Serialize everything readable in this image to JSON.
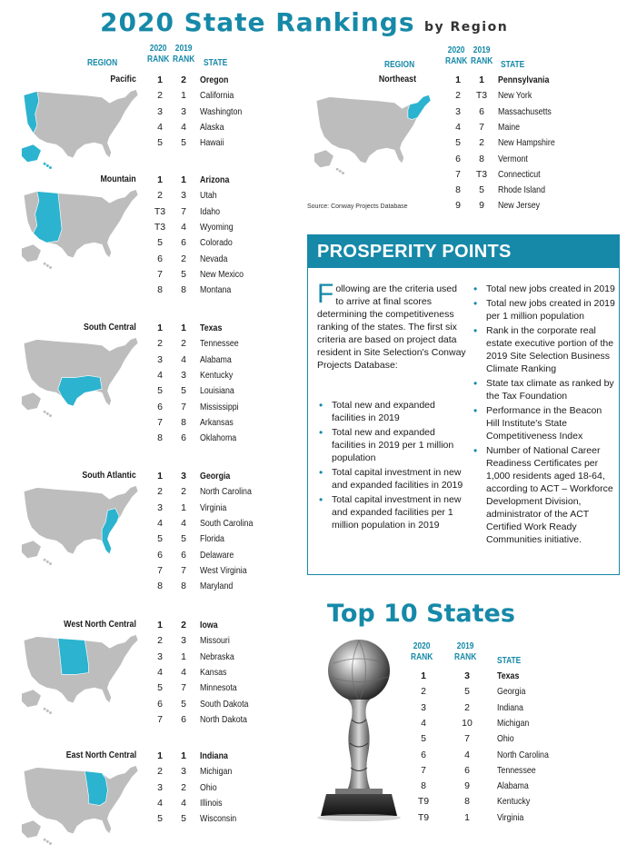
{
  "header": {
    "title": "2020 State Rankings",
    "subtitle": "by Region"
  },
  "columns": {
    "region": "REGION",
    "rank2020": "2020\nRANK",
    "rank2019": "2019\nRANK",
    "state": "STATE"
  },
  "columns_top10": {
    "rank2020": "2020\nRANK",
    "rank2019": "2019\nRANK",
    "state": "STATE"
  },
  "regions": [
    {
      "name": "Pacific",
      "rows": [
        {
          "r20": "1",
          "r19": "2",
          "state": "Oregon"
        },
        {
          "r20": "2",
          "r19": "1",
          "state": "California"
        },
        {
          "r20": "3",
          "r19": "3",
          "state": "Washington"
        },
        {
          "r20": "4",
          "r19": "4",
          "state": "Alaska"
        },
        {
          "r20": "5",
          "r19": "5",
          "state": "Hawaii"
        }
      ]
    },
    {
      "name": "Mountain",
      "rows": [
        {
          "r20": "1",
          "r19": "1",
          "state": "Arizona"
        },
        {
          "r20": "2",
          "r19": "3",
          "state": "Utah"
        },
        {
          "r20": "T3",
          "r19": "7",
          "state": "Idaho"
        },
        {
          "r20": "T3",
          "r19": "4",
          "state": "Wyoming"
        },
        {
          "r20": "5",
          "r19": "6",
          "state": "Colorado"
        },
        {
          "r20": "6",
          "r19": "2",
          "state": "Nevada"
        },
        {
          "r20": "7",
          "r19": "5",
          "state": "New Mexico"
        },
        {
          "r20": "8",
          "r19": "8",
          "state": "Montana"
        }
      ]
    },
    {
      "name": "South Central",
      "rows": [
        {
          "r20": "1",
          "r19": "1",
          "state": "Texas"
        },
        {
          "r20": "2",
          "r19": "2",
          "state": "Tennessee"
        },
        {
          "r20": "3",
          "r19": "4",
          "state": "Alabama"
        },
        {
          "r20": "4",
          "r19": "3",
          "state": "Kentucky"
        },
        {
          "r20": "5",
          "r19": "5",
          "state": "Louisiana"
        },
        {
          "r20": "6",
          "r19": "7",
          "state": "Mississippi"
        },
        {
          "r20": "7",
          "r19": "8",
          "state": "Arkansas"
        },
        {
          "r20": "8",
          "r19": "6",
          "state": "Oklahoma"
        }
      ]
    },
    {
      "name": "South Atlantic",
      "rows": [
        {
          "r20": "1",
          "r19": "3",
          "state": "Georgia"
        },
        {
          "r20": "2",
          "r19": "2",
          "state": "North Carolina"
        },
        {
          "r20": "3",
          "r19": "1",
          "state": "Virginia"
        },
        {
          "r20": "4",
          "r19": "4",
          "state": "South Carolina"
        },
        {
          "r20": "5",
          "r19": "5",
          "state": "Florida"
        },
        {
          "r20": "6",
          "r19": "6",
          "state": "Delaware"
        },
        {
          "r20": "7",
          "r19": "7",
          "state": "West Virginia"
        },
        {
          "r20": "8",
          "r19": "8",
          "state": "Maryland"
        }
      ]
    },
    {
      "name": "West North Central",
      "rows": [
        {
          "r20": "1",
          "r19": "2",
          "state": "Iowa"
        },
        {
          "r20": "2",
          "r19": "3",
          "state": "Missouri"
        },
        {
          "r20": "3",
          "r19": "1",
          "state": "Nebraska"
        },
        {
          "r20": "4",
          "r19": "4",
          "state": "Kansas"
        },
        {
          "r20": "5",
          "r19": "7",
          "state": "Minnesota"
        },
        {
          "r20": "6",
          "r19": "5",
          "state": "South Dakota"
        },
        {
          "r20": "7",
          "r19": "6",
          "state": "North Dakota"
        }
      ]
    },
    {
      "name": "East North Central",
      "rows": [
        {
          "r20": "1",
          "r19": "1",
          "state": "Indiana"
        },
        {
          "r20": "2",
          "r19": "3",
          "state": "Michigan"
        },
        {
          "r20": "3",
          "r19": "2",
          "state": "Ohio"
        },
        {
          "r20": "4",
          "r19": "4",
          "state": "Illinois"
        },
        {
          "r20": "5",
          "r19": "5",
          "state": "Wisconsin"
        }
      ]
    },
    {
      "name": "Northeast",
      "rows": [
        {
          "r20": "1",
          "r19": "1",
          "state": "Pennsylvania"
        },
        {
          "r20": "2",
          "r19": "T3",
          "state": "New York"
        },
        {
          "r20": "3",
          "r19": "6",
          "state": "Massachusetts"
        },
        {
          "r20": "4",
          "r19": "7",
          "state": "Maine"
        },
        {
          "r20": "5",
          "r19": "2",
          "state": "New Hampshire"
        },
        {
          "r20": "6",
          "r19": "8",
          "state": "Vermont"
        },
        {
          "r20": "7",
          "r19": "T3",
          "state": "Connecticut"
        },
        {
          "r20": "8",
          "r19": "5",
          "state": "Rhode Island"
        },
        {
          "r20": "9",
          "r19": "9",
          "state": "New Jersey"
        }
      ]
    }
  ],
  "source": "Source: Conway Projects Database",
  "prosperity": {
    "title": "PROSPERITY POINTS",
    "intro_cap": "F",
    "intro_rest": "ollowing are the criteria used to arrive at final scores determining the competitiveness ranking of the states. The first six criteria are based on project data resident in Site Selection's Conway Projects Database:",
    "left_items": [
      "Total new and expanded facilities in 2019",
      "Total new and expanded facilities in 2019 per 1 million population",
      "Total capital investment in new and expanded facilities in 2019",
      "Total capital investment in new and expanded facilities per 1 million population in 2019"
    ],
    "right_items": [
      "Total new jobs created in 2019",
      "Total new jobs created in 2019 per 1 million population",
      "Rank in the corporate real estate executive portion of the 2019 Site Selection Business Climate Ranking",
      "State tax climate as ranked by the Tax Foundation",
      "Performance in the Beacon Hill Institute's State Competitiveness Index",
      "Number of National Career Readiness Certificates per 1,000 residents aged 18-64, according to ACT – Workforce Development Division, administrator of the ACT Certified Work Ready Communities initiative."
    ]
  },
  "top10": {
    "title": "Top 10 States",
    "rows": [
      {
        "r20": "1",
        "r19": "3",
        "state": "Texas"
      },
      {
        "r20": "2",
        "r19": "5",
        "state": "Georgia"
      },
      {
        "r20": "3",
        "r19": "2",
        "state": "Indiana"
      },
      {
        "r20": "4",
        "r19": "10",
        "state": "Michigan"
      },
      {
        "r20": "5",
        "r19": "7",
        "state": "Ohio"
      },
      {
        "r20": "6",
        "r19": "4",
        "state": "North Carolina"
      },
      {
        "r20": "7",
        "r19": "6",
        "state": "Tennessee"
      },
      {
        "r20": "8",
        "r19": "9",
        "state": "Alabama"
      },
      {
        "r20": "T9",
        "r19": "8",
        "state": "Kentucky"
      },
      {
        "r20": "T9",
        "r19": "1",
        "state": "Virginia"
      }
    ]
  },
  "colors": {
    "accent": "#1689a8",
    "map_gray": "#bdbdbd",
    "map_highlight": "#2bb3cf"
  },
  "icons": {
    "trophy": "crystal-globe-trophy-icon"
  }
}
